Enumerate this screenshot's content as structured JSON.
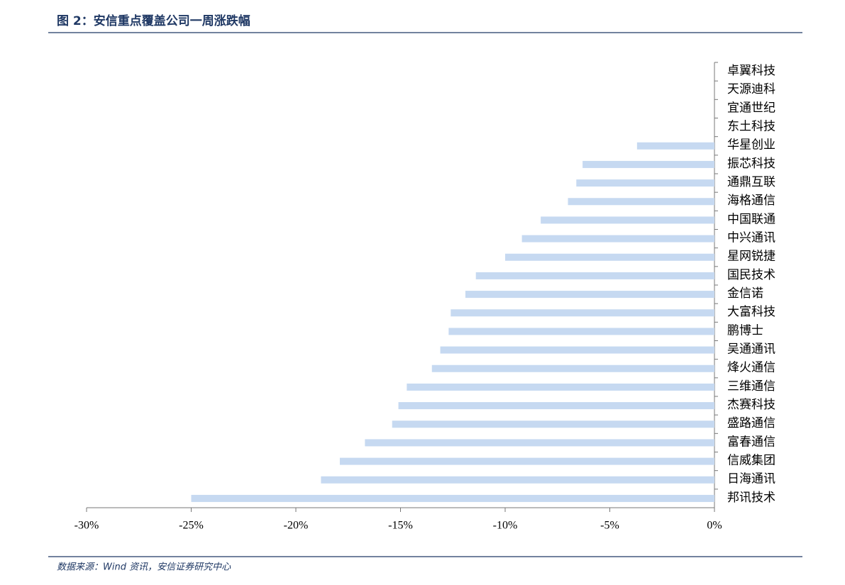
{
  "chart_data": {
    "type": "barh",
    "title": "图 2：安信重点覆盖公司一周涨跌幅",
    "source": "数据来源：Wind 资讯，安信证券研究中心",
    "categories": [
      "卓翼科技",
      "天源迪科",
      "宜通世纪",
      "东土科技",
      "华星创业",
      "振芯科技",
      "通鼎互联",
      "海格通信",
      "中国联通",
      "中兴通讯",
      "星网锐捷",
      "国民技术",
      "金信诺",
      "大富科技",
      "鹏博士",
      "吴通通讯",
      "烽火通信",
      "三维通信",
      "杰赛科技",
      "盛路通信",
      "富春通信",
      "信威集团",
      "日海通讯",
      "邦讯技术"
    ],
    "values": [
      0,
      0,
      0,
      0,
      -3.7,
      -6.3,
      -6.6,
      -7.0,
      -8.3,
      -9.2,
      -10.0,
      -11.4,
      -11.9,
      -12.6,
      -12.7,
      -13.1,
      -13.5,
      -14.7,
      -15.1,
      -15.4,
      -16.7,
      -17.9,
      -18.8,
      -25.0
    ],
    "color": "#c6d9f1",
    "xlim": [
      -30,
      0
    ],
    "xticks": [
      {
        "value": -30,
        "label": "-30%"
      },
      {
        "value": -25,
        "label": "-25%"
      },
      {
        "value": -20,
        "label": "-20%"
      },
      {
        "value": -15,
        "label": "-15%"
      },
      {
        "value": -10,
        "label": "-10%"
      },
      {
        "value": -5,
        "label": "-5%"
      },
      {
        "value": 0,
        "label": "0%"
      }
    ],
    "grid": false
  }
}
